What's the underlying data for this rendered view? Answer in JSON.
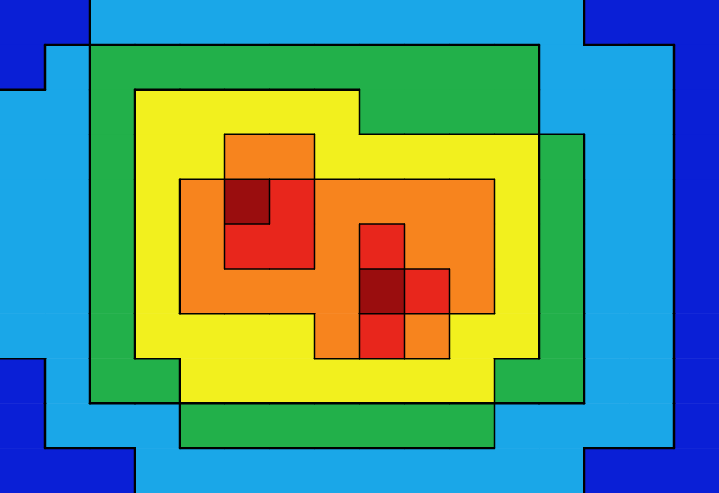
{
  "chart_data": {
    "type": "heatmap",
    "cells": [
      [
        1,
        1.5,
        2.5,
        2.5,
        2.5,
        2.5,
        2.5,
        2.5,
        2.5,
        2.5,
        2.5,
        2.5,
        2,
        1.5,
        1,
        1
      ],
      [
        1.5,
        2.5,
        3.5,
        3.5,
        3.5,
        3.5,
        3.5,
        3.5,
        3.5,
        3.5,
        3.5,
        3,
        2.5,
        2.5,
        2,
        1.5
      ],
      [
        2,
        2.5,
        3.5,
        4,
        4,
        4,
        4,
        4,
        3.8,
        3.8,
        3.5,
        3.5,
        2.8,
        2.5,
        2.5,
        1.5
      ],
      [
        2,
        2.5,
        3.5,
        4.5,
        4.5,
        5,
        5.2,
        4.8,
        4.5,
        4.5,
        4.5,
        4,
        3.5,
        2.5,
        2.5,
        1.5
      ],
      [
        2,
        2.5,
        3.5,
        4.5,
        5.5,
        8.5,
        7,
        5.5,
        5,
        5.5,
        5,
        4.5,
        3.5,
        2.5,
        2.5,
        1.5
      ],
      [
        2,
        2.5,
        3.5,
        4.5,
        5.5,
        7.2,
        6.8,
        5.5,
        6.8,
        6,
        5.5,
        4.5,
        3.5,
        2.5,
        2,
        1.5
      ],
      [
        2,
        2.5,
        3.5,
        4.5,
        5.5,
        5.8,
        5,
        6.2,
        8.5,
        6.8,
        5.5,
        4.5,
        3.5,
        2.5,
        2,
        1.5
      ],
      [
        2,
        2.5,
        3.5,
        4.5,
        4.8,
        4.8,
        4.5,
        5.5,
        6.5,
        5.5,
        4.8,
        4.5,
        3.5,
        2.5,
        2,
        1.5
      ],
      [
        1.8,
        2.5,
        3.2,
        3.5,
        4.2,
        4.5,
        4.5,
        4.5,
        4.5,
        4.5,
        4.2,
        3.5,
        3,
        2.5,
        2,
        1.5
      ],
      [
        1.5,
        2.2,
        2.5,
        2.8,
        3.2,
        3.5,
        3.5,
        3.5,
        3.5,
        3.5,
        3.2,
        2.8,
        2.5,
        2.2,
        2,
        1.5
      ],
      [
        1,
        1.5,
        1.8,
        2,
        2.2,
        2.2,
        2.3,
        2.3,
        2.3,
        2.2,
        2.1,
        2,
        2,
        1.8,
        1.5,
        1
      ]
    ],
    "xlim": [
      0,
      16
    ],
    "ylim": [
      0,
      11
    ],
    "contour_levels": [
      2,
      3,
      4,
      5,
      6.5,
      8
    ],
    "colors": [
      "#0a1fd6",
      "#1aa7e8",
      "#22b04a",
      "#f2f01e",
      "#f7841e",
      "#e8261c",
      "#9a0d0e"
    ],
    "tick_labels": false
  }
}
